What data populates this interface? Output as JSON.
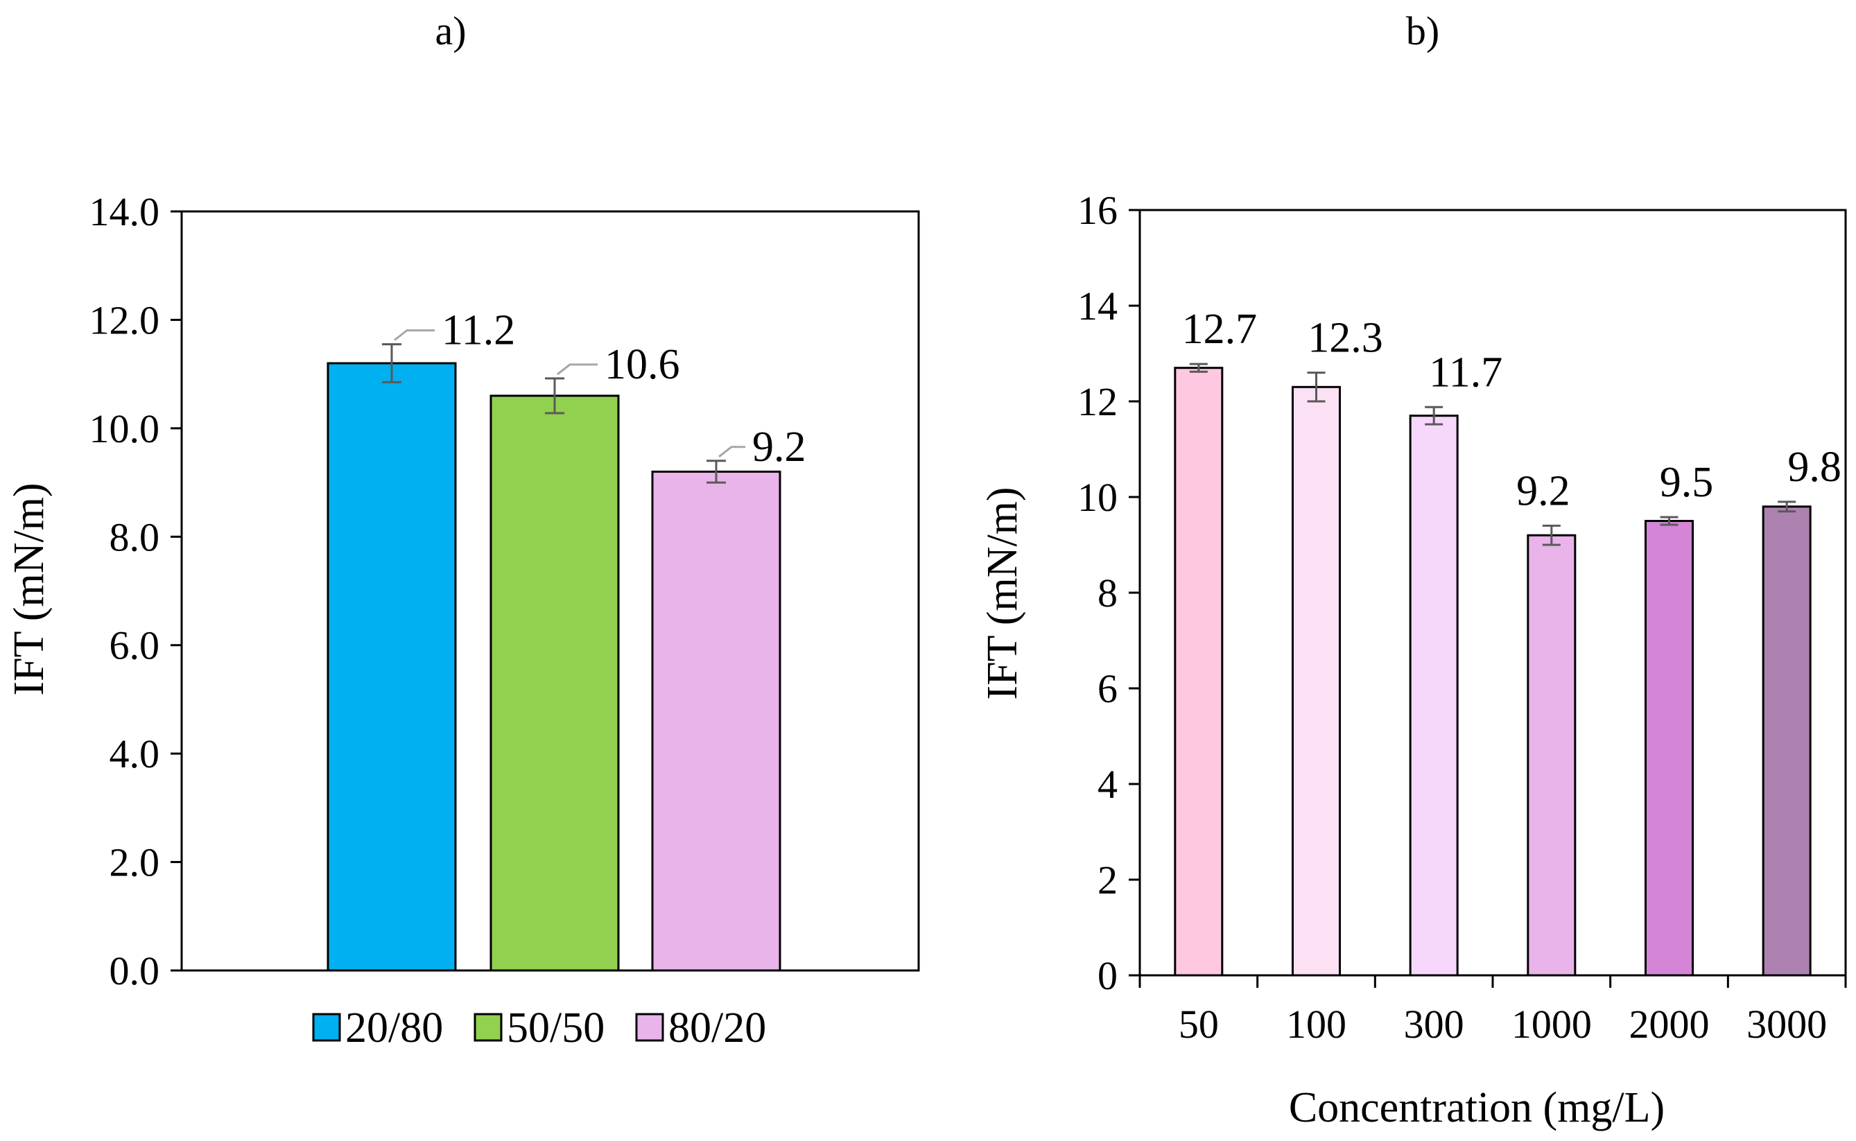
{
  "chart_data": [
    {
      "type": "bar",
      "panel_label": "a)",
      "title": "",
      "xlabel": "",
      "ylabel": "IFT (mN/m)",
      "ylim": [
        0,
        14
      ],
      "yticks": [
        "0.0",
        "2.0",
        "4.0",
        "6.0",
        "8.0",
        "10.0",
        "12.0",
        "14.0"
      ],
      "grid": false,
      "legend": "bottom",
      "categories": [
        "20/80",
        "50/50",
        "80/20"
      ],
      "values": [
        11.2,
        10.6,
        9.2
      ],
      "errors": [
        0.35,
        0.32,
        0.2
      ],
      "data_labels": [
        "11.2",
        "10.6",
        "9.2"
      ],
      "colors": [
        "#00b0f0",
        "#92d050",
        "#e9b4ea"
      ]
    },
    {
      "type": "bar",
      "panel_label": "b)",
      "title": "",
      "xlabel": "Concentration (mg/L)",
      "ylabel": "IFT (mN/m)",
      "ylim": [
        0,
        16
      ],
      "yticks": [
        "0",
        "2",
        "4",
        "6",
        "8",
        "10",
        "12",
        "14",
        "16"
      ],
      "grid": false,
      "legend": "none",
      "categories": [
        "50",
        "100",
        "300",
        "1000",
        "2000",
        "3000"
      ],
      "values": [
        12.7,
        12.3,
        11.7,
        9.2,
        9.5,
        9.8
      ],
      "errors": [
        0.08,
        0.3,
        0.18,
        0.2,
        0.08,
        0.1
      ],
      "data_labels": [
        "12.7",
        "12.3",
        "11.7",
        "9.2",
        "9.5",
        "9.8"
      ],
      "colors": [
        "#fdc8e0",
        "#fce0f4",
        "#f7d8fc",
        "#e9b4ea",
        "#d485d6",
        "#ae82b0"
      ]
    }
  ]
}
